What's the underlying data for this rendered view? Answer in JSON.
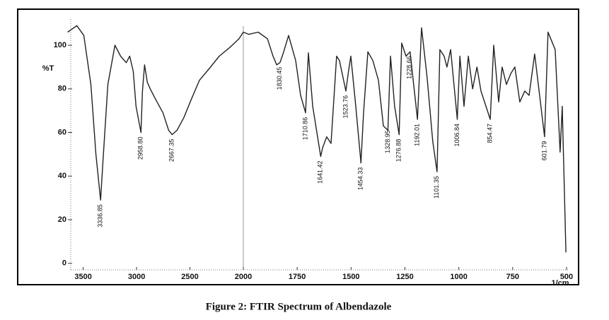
{
  "chart_data": {
    "type": "line",
    "title": "Figure 2: FTIR Spectrum of Albendazole",
    "ylabel": "%T",
    "xlabel": "1/cm",
    "xlim": [
      3650,
      500
    ],
    "xbreak": 2000,
    "ylim": [
      -3,
      112
    ],
    "xticks": [
      3500,
      3000,
      2500,
      2000,
      1750,
      1500,
      1250,
      1000,
      750,
      500
    ],
    "yticks": [
      0,
      20,
      40,
      60,
      80,
      100
    ],
    "color": "#222222",
    "series": [
      {
        "name": "%T",
        "color": "#222222",
        "x": [
          3646,
          3560,
          3494,
          3428,
          3381,
          3337,
          3315,
          3269,
          3203,
          3150,
          3097,
          3064,
          3031,
          3005,
          2959,
          2945,
          2925,
          2899,
          2872,
          2820,
          2753,
          2700,
          2667,
          2621,
          2555,
          2489,
          2410,
          2324,
          2225,
          2126,
          2040,
          2000,
          1974,
          1931,
          1888,
          1862,
          1845,
          1830,
          1816,
          1790,
          1757,
          1734,
          1711,
          1698,
          1678,
          1641,
          1632,
          1613,
          1593,
          1567,
          1554,
          1524,
          1512,
          1501,
          1478,
          1454,
          1442,
          1422,
          1399,
          1373,
          1350,
          1329,
          1317,
          1298,
          1277,
          1265,
          1245,
          1226,
          1192,
          1173,
          1147,
          1121,
          1101,
          1088,
          1068,
          1055,
          1038,
          1007,
          995,
          976,
          956,
          936,
          916,
          897,
          854,
          838,
          815,
          799,
          779,
          759,
          740,
          717,
          694,
          674,
          648,
          602,
          586,
          553,
          530,
          520,
          503
        ],
        "values": [
          106,
          109,
          104.5,
          82,
          50,
          29,
          47,
          82,
          100,
          95,
          92,
          95,
          88,
          72,
          60,
          79,
          91,
          83,
          80,
          75,
          69,
          61,
          59,
          61,
          67,
          75,
          84,
          89,
          95,
          99,
          103,
          106,
          105,
          106,
          103,
          95,
          91,
          92,
          96,
          104.5,
          93,
          77,
          69,
          96.5,
          72,
          49,
          53,
          58,
          55,
          95,
          93,
          79,
          88,
          95,
          72,
          46,
          69,
          97,
          93,
          84,
          63,
          61,
          95,
          72,
          59,
          101,
          95,
          97,
          66,
          108,
          85,
          56,
          42,
          98,
          95,
          90,
          98,
          66,
          95,
          72,
          95,
          80,
          90,
          79,
          66,
          100,
          74,
          90,
          82,
          87,
          90,
          74,
          79,
          77,
          96,
          58,
          106,
          98,
          51,
          72,
          5
        ]
      }
    ],
    "annotations": [
      {
        "x": 3336.85,
        "label": "3336.85",
        "y": 29
      },
      {
        "x": 2958.8,
        "label": "2958.80",
        "y": 60
      },
      {
        "x": 2667.35,
        "label": "2667.35",
        "y": 59
      },
      {
        "x": 1830.45,
        "label": "1830.45",
        "y": 92
      },
      {
        "x": 1710.86,
        "label": "1710.86",
        "y": 69
      },
      {
        "x": 1641.42,
        "label": "1641.42",
        "y": 49
      },
      {
        "x": 1523.76,
        "label": "1523.76",
        "y": 79
      },
      {
        "x": 1454.33,
        "label": "1454.33",
        "y": 46
      },
      {
        "x": 1328.95,
        "label": "1328.95",
        "y": 63
      },
      {
        "x": 1276.88,
        "label": "1276.88",
        "y": 59
      },
      {
        "x": 1228.66,
        "label": "1228.66",
        "y": 97
      },
      {
        "x": 1192.01,
        "label": "1192.01",
        "y": 66
      },
      {
        "x": 1101.35,
        "label": "1101.35",
        "y": 42
      },
      {
        "x": 1006.84,
        "label": "1006.84",
        "y": 66
      },
      {
        "x": 854.47,
        "label": "854.47",
        "y": 66
      },
      {
        "x": 601.79,
        "label": "601.79",
        "y": 58
      }
    ]
  }
}
